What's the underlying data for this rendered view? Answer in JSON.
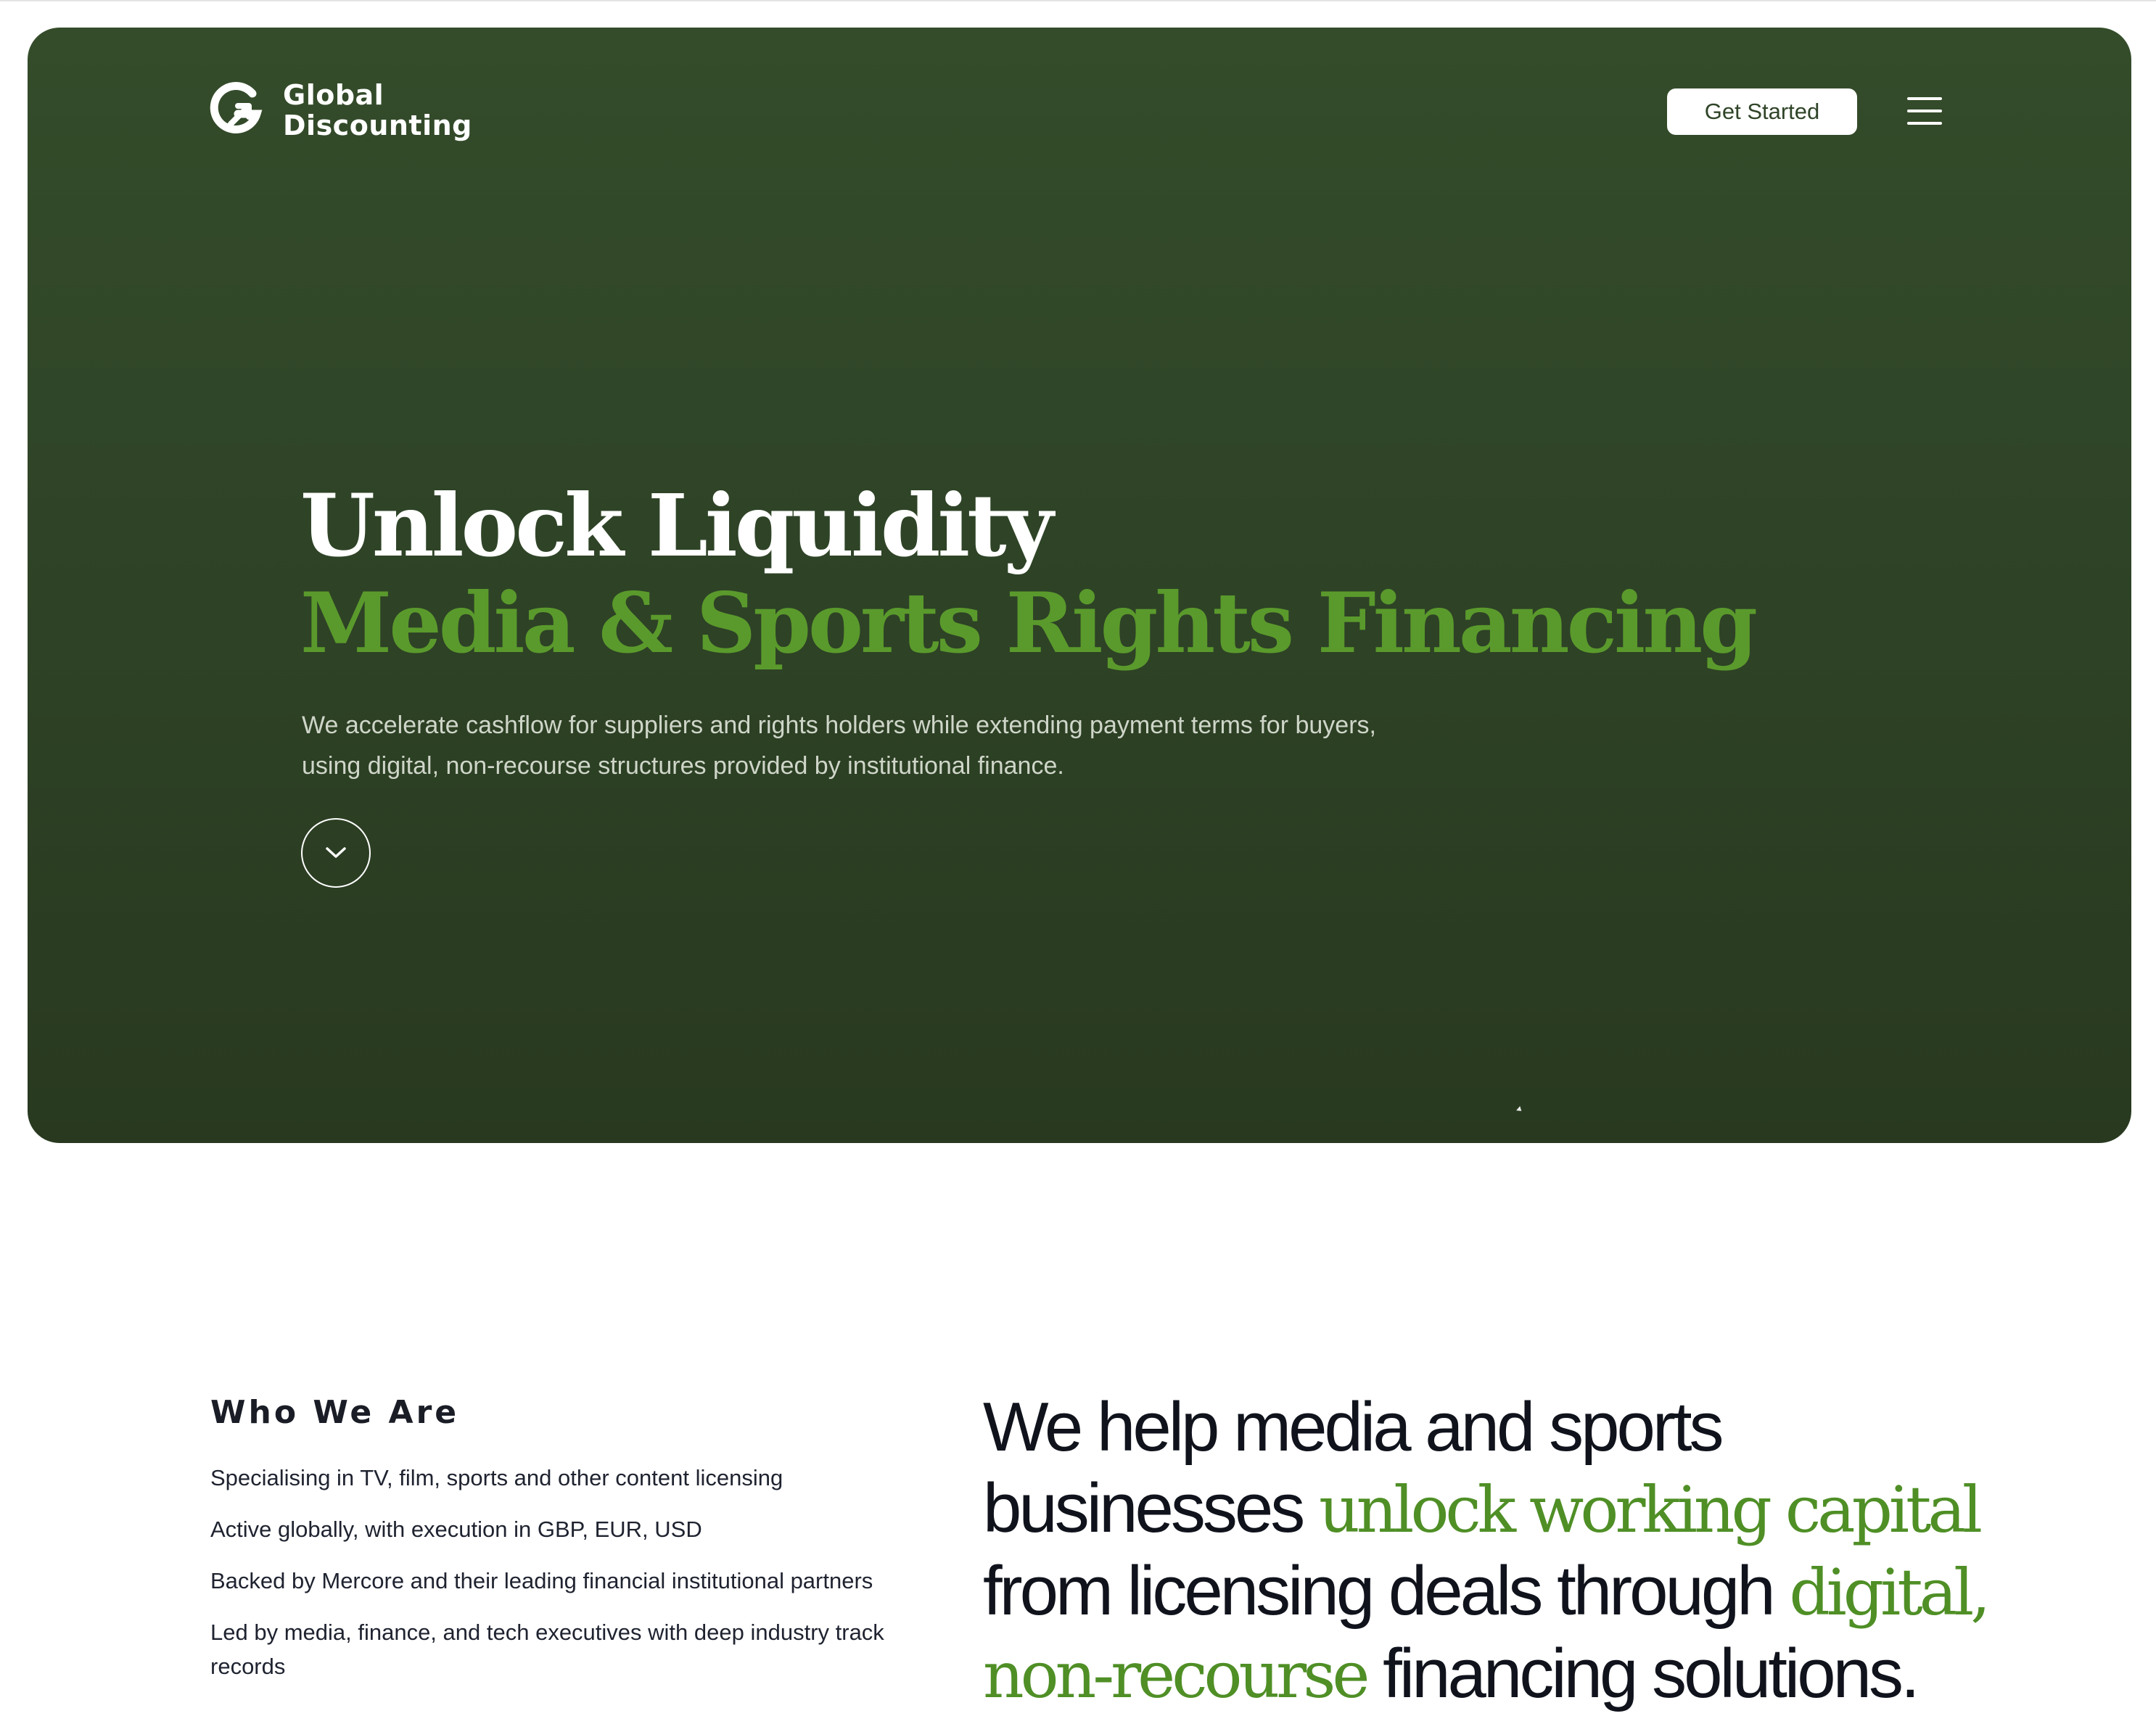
{
  "brand": {
    "name_line1": "Global",
    "name_line2": "Discounting"
  },
  "nav": {
    "cta_label": "Get Started",
    "menu_icon": "hamburger-menu-icon"
  },
  "hero": {
    "title_line1": "Unlock Liquidity",
    "title_line2": "Media & Sports Rights Financing",
    "subtitle": "We accelerate cashflow for suppliers and rights holders while extending payment terms for buyers, using digital, non-recourse structures provided by institutional finance.",
    "scroll_icon": "chevron-down-icon"
  },
  "who_we_are": {
    "heading": "Who We Are",
    "items": [
      "Specialising in TV, film, sports and other content licensing",
      "Active globally, with execution in GBP, EUR, USD",
      "Backed by Mercore and their leading financial institutional partners",
      "Led by media, finance, and tech executives with deep industry track records"
    ]
  },
  "statement": {
    "part1": "We help media and sports businesses ",
    "highlight1": "unlock working capital",
    "part2": " from licensing deals through ",
    "highlight2": "digital, non-recourse",
    "part3": " financing solutions."
  },
  "colors": {
    "hero_bg": "#2f4427",
    "accent_green": "#5a9a2c",
    "text_dark": "#10131c"
  }
}
